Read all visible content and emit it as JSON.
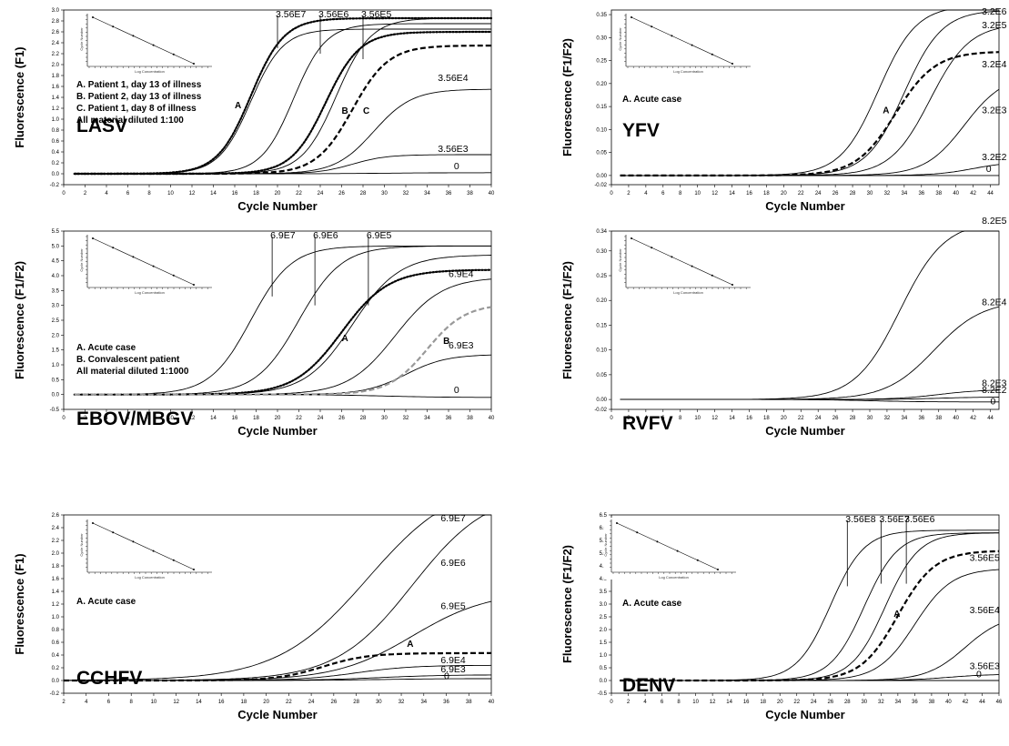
{
  "chart_data": [
    {
      "type": "line",
      "panel": "LASV",
      "virus_label": "LASV",
      "xlabel": "Cycle Number",
      "ylabel": "Fluorescence (F1)",
      "xlim": [
        0,
        40
      ],
      "ylim": [
        -0.2,
        3.0
      ],
      "x_ticks": [
        0,
        2,
        4,
        6,
        8,
        10,
        12,
        14,
        16,
        18,
        20,
        22,
        24,
        26,
        28,
        30,
        32,
        34,
        36,
        38,
        40
      ],
      "y_ticks": [
        "-0.2",
        "0.0",
        "0.2",
        "0.4",
        "0.6",
        "0.8",
        "1.0",
        "1.2",
        "1.4",
        "1.6",
        "1.8",
        "2.0",
        "2.2",
        "2.4",
        "2.6",
        "2.8",
        "3.0"
      ],
      "notes": [
        "A. Patient 1, day 13 of illness",
        "B. Patient 2, day 13 of illness",
        "C. Patient 1, day 8 of illness",
        "All material diluted 1:100"
      ],
      "inset": {
        "xlabel": "Log Concentration",
        "ylabel": "Cycle Number"
      },
      "callouts": [
        {
          "label": "3.56E7",
          "x": 20,
          "y": 2.3
        },
        {
          "label": "3.56E6",
          "x": 24,
          "y": 2.2
        },
        {
          "label": "3.56E5",
          "x": 28,
          "y": 2.1
        }
      ],
      "series": [
        {
          "name": "3.56E7",
          "style": "solid",
          "start": 0,
          "plateau": 2.65,
          "mid": 17.5,
          "scale": 1.5,
          "label": "",
          "label_at": [
            0,
            0
          ]
        },
        {
          "name": "3.56E6",
          "style": "solid",
          "start": 0,
          "plateau": 2.75,
          "mid": 21.5,
          "scale": 1.5,
          "label": "",
          "label_at": [
            0,
            0
          ]
        },
        {
          "name": "3.56E5",
          "style": "solid",
          "start": 0,
          "plateau": 2.85,
          "mid": 25.5,
          "scale": 1.6,
          "label": "",
          "label_at": [
            0,
            0
          ]
        },
        {
          "name": "3.56E4",
          "style": "solid",
          "start": 0,
          "plateau": 1.55,
          "mid": 29,
          "scale": 1.8,
          "label": "3.56E4",
          "label_at": [
            35,
            1.7
          ]
        },
        {
          "name": "3.56E3",
          "style": "solid",
          "start": 0,
          "plateau": 0.35,
          "mid": 27,
          "scale": 1.6,
          "label": "3.56E3",
          "label_at": [
            35,
            0.4
          ]
        },
        {
          "name": "0",
          "style": "solid",
          "start": 0,
          "plateau": 0.02,
          "mid": 30,
          "scale": 3,
          "label": "0",
          "label_at": [
            36.5,
            0.08
          ]
        },
        {
          "name": "A",
          "style": "dotted",
          "start": 0,
          "plateau": 2.85,
          "mid": 17.5,
          "scale": 1.55,
          "label": "A",
          "label_at": [
            16,
            1.2
          ]
        },
        {
          "name": "B",
          "style": "dotted",
          "start": 0,
          "plateau": 2.6,
          "mid": 24.5,
          "scale": 1.6,
          "label": "B",
          "label_at": [
            26,
            1.1
          ]
        },
        {
          "name": "C",
          "style": "dashed",
          "start": 0,
          "plateau": 2.35,
          "mid": 27,
          "scale": 1.7,
          "label": "C",
          "label_at": [
            28,
            1.1
          ]
        }
      ]
    },
    {
      "type": "line",
      "panel": "YFV",
      "virus_label": "YFV",
      "xlabel": "Cycle Number",
      "ylabel": "Fluorescence (F1/F2)",
      "xlim": [
        0,
        45
      ],
      "ylim": [
        -0.02,
        0.36
      ],
      "x_ticks": [
        0,
        2,
        4,
        6,
        8,
        10,
        12,
        14,
        16,
        18,
        20,
        22,
        24,
        26,
        28,
        30,
        32,
        34,
        36,
        38,
        40,
        42,
        44
      ],
      "y_ticks": [
        "-0.02",
        "0.00",
        "0.05",
        "0.10",
        "0.15",
        "0.20",
        "0.25",
        "0.30",
        "0.35"
      ],
      "notes": [
        "A. Acute case"
      ],
      "inset": {
        "xlabel": "Log Concentration",
        "ylabel": "Cycle Number"
      },
      "callouts": [],
      "series": [
        {
          "name": "3.2E6",
          "style": "solid",
          "start": 0,
          "plateau": 0.37,
          "mid": 31,
          "scale": 2.2,
          "label": "3.2E6",
          "label_at": [
            43,
            0.35
          ]
        },
        {
          "name": "3.2E5",
          "style": "solid",
          "start": 0,
          "plateau": 0.36,
          "mid": 34,
          "scale": 2.2,
          "label": "3.2E5",
          "label_at": [
            43,
            0.32
          ]
        },
        {
          "name": "3.2E4",
          "style": "solid",
          "start": 0,
          "plateau": 0.33,
          "mid": 37,
          "scale": 2.3,
          "label": "3.2E4",
          "label_at": [
            43,
            0.235
          ]
        },
        {
          "name": "3.2E3",
          "style": "solid",
          "start": 0,
          "plateau": 0.22,
          "mid": 41,
          "scale": 2.3,
          "label": "3.2E3",
          "label_at": [
            43,
            0.135
          ]
        },
        {
          "name": "3.2E2",
          "style": "solid",
          "start": 0,
          "plateau": 0.03,
          "mid": 42,
          "scale": 2.2,
          "label": "3.2E2",
          "label_at": [
            43,
            0.033
          ]
        },
        {
          "name": "0",
          "style": "solid",
          "start": 0,
          "plateau": 0.0,
          "mid": 30,
          "scale": 3,
          "label": "0",
          "label_at": [
            43.5,
            0.008
          ]
        },
        {
          "name": "A",
          "style": "dashed",
          "start": 0,
          "plateau": 0.27,
          "mid": 33,
          "scale": 2.3,
          "label": "A",
          "label_at": [
            31.5,
            0.135
          ]
        }
      ]
    },
    {
      "type": "line",
      "panel": "EBOV/MBGV",
      "virus_label": "EBOV/MBGV",
      "xlabel": "Cycle Number",
      "ylabel": "Fluorescence (F1/F2)",
      "xlim": [
        0,
        40
      ],
      "ylim": [
        -0.5,
        5.5
      ],
      "x_ticks": [
        0,
        2,
        4,
        6,
        8,
        10,
        12,
        14,
        16,
        18,
        20,
        22,
        24,
        26,
        28,
        30,
        32,
        34,
        36,
        38,
        40
      ],
      "y_ticks": [
        "-0.5",
        "0.0",
        "0.5",
        "1.0",
        "1.5",
        "2.0",
        "2.5",
        "3.0",
        "3.5",
        "4.0",
        "4.5",
        "5.0",
        "5.5"
      ],
      "notes": [
        "A. Acute case",
        "B. Convalescent patient",
        "All material diluted 1:1000"
      ],
      "inset": {
        "xlabel": "Log Concentration",
        "ylabel": "Cycle Number"
      },
      "callouts": [
        {
          "label": "6.9E7",
          "x": 19.5,
          "y": 3.3
        },
        {
          "label": "6.9E6",
          "x": 23.5,
          "y": 3.0
        },
        {
          "label": "6.9E5",
          "x": 28.5,
          "y": 3.0
        }
      ],
      "series": [
        {
          "name": "6.9E7",
          "style": "solid",
          "start": 0,
          "plateau": 5.0,
          "mid": 17.5,
          "scale": 1.9,
          "label": "",
          "label_at": [
            0,
            0
          ]
        },
        {
          "name": "6.9E6",
          "style": "solid",
          "start": 0,
          "plateau": 5.0,
          "mid": 22,
          "scale": 2.0,
          "label": "",
          "label_at": [
            0,
            0
          ]
        },
        {
          "name": "6.9E5",
          "style": "solid",
          "start": 0,
          "plateau": 4.7,
          "mid": 27,
          "scale": 2.2,
          "label": "",
          "label_at": [
            0,
            0
          ]
        },
        {
          "name": "6.9E4",
          "style": "solid",
          "start": 0,
          "plateau": 3.95,
          "mid": 31,
          "scale": 2.2,
          "label": "6.9E4",
          "label_at": [
            36,
            3.95
          ]
        },
        {
          "name": "6.9E3",
          "style": "solid",
          "start": 0,
          "plateau": 1.35,
          "mid": 32,
          "scale": 1.9,
          "label": "6.9E3",
          "label_at": [
            36,
            1.55
          ]
        },
        {
          "name": "0",
          "style": "solid",
          "start": 0,
          "plateau": -0.1,
          "mid": 30,
          "scale": 3,
          "label": "0",
          "label_at": [
            36.5,
            0.05
          ]
        },
        {
          "name": "A",
          "style": "dotted",
          "start": 0,
          "plateau": 4.2,
          "mid": 26,
          "scale": 2.2,
          "label": "A",
          "label_at": [
            26,
            1.8
          ]
        },
        {
          "name": "B",
          "style": "dashed-gray",
          "start": 0,
          "plateau": 3.05,
          "mid": 34,
          "scale": 1.8,
          "label": "B",
          "label_at": [
            35.5,
            1.7
          ]
        }
      ]
    },
    {
      "type": "line",
      "panel": "RVFV",
      "virus_label": "RVFV",
      "xlabel": "Cycle Number",
      "ylabel": "Fluorescence (F1/F2)",
      "xlim": [
        0,
        45
      ],
      "ylim": [
        -0.02,
        0.34
      ],
      "x_ticks": [
        0,
        2,
        4,
        6,
        8,
        10,
        12,
        14,
        16,
        18,
        20,
        22,
        24,
        26,
        28,
        30,
        32,
        34,
        36,
        38,
        40,
        42,
        44
      ],
      "y_ticks": [
        "-0.02",
        "0.00",
        "0.05",
        "0.10",
        "0.15",
        "0.20",
        "0.25",
        "0.30",
        "0.34"
      ],
      "notes": [],
      "inset": {
        "xlabel": "Log Concentration",
        "ylabel": "Cycle Number"
      },
      "callouts": [],
      "series": [
        {
          "name": "8.2E5",
          "style": "solid",
          "start": 0,
          "plateau": 0.36,
          "mid": 33.5,
          "scale": 2.6,
          "label": "8.2E5",
          "label_at": [
            43,
            0.355
          ]
        },
        {
          "name": "8.2E4",
          "style": "solid",
          "start": 0,
          "plateau": 0.2,
          "mid": 37.5,
          "scale": 2.8,
          "label": "8.2E4",
          "label_at": [
            43,
            0.19
          ]
        },
        {
          "name": "8.2E3",
          "style": "solid",
          "start": 0,
          "plateau": 0.02,
          "mid": 38,
          "scale": 2.5,
          "label": "8.2E3",
          "label_at": [
            43,
            0.027
          ]
        },
        {
          "name": "8.2E2",
          "style": "solid",
          "start": 0,
          "plateau": 0.005,
          "mid": 38,
          "scale": 2.5,
          "label": "8.2E2",
          "label_at": [
            43,
            0.013
          ]
        },
        {
          "name": "0",
          "style": "solid",
          "start": 0,
          "plateau": -0.005,
          "mid": 30,
          "scale": 3,
          "label": "0",
          "label_at": [
            44,
            -0.01
          ]
        }
      ]
    },
    {
      "type": "line",
      "panel": "CCHFV",
      "virus_label": "CCHFV",
      "xlabel": "Cycle Number",
      "ylabel": "Fluorescence (F1)",
      "xlim": [
        2,
        40
      ],
      "ylim": [
        -0.2,
        2.6
      ],
      "x_ticks": [
        2,
        4,
        6,
        8,
        10,
        12,
        14,
        16,
        18,
        20,
        22,
        24,
        26,
        28,
        30,
        32,
        34,
        36,
        38,
        40
      ],
      "y_ticks": [
        "-0.2",
        "0.0",
        "0.2",
        "0.4",
        "0.6",
        "0.8",
        "1.0",
        "1.2",
        "1.4",
        "1.6",
        "1.8",
        "2.0",
        "2.2",
        "2.4",
        "2.6"
      ],
      "notes": [
        "A. Acute case"
      ],
      "inset": {
        "xlabel": "Log Concentration",
        "ylabel": "Cycle Number"
      },
      "callouts": [],
      "series": [
        {
          "name": "6.9E7",
          "style": "solid",
          "start": 0,
          "plateau": 3.2,
          "mid": 29,
          "scale": 4.0,
          "label": "6.9E7",
          "label_at": [
            35.5,
            2.5
          ]
        },
        {
          "name": "6.9E6",
          "style": "solid",
          "start": 0,
          "plateau": 3.0,
          "mid": 33,
          "scale": 3.4,
          "label": "6.9E6",
          "label_at": [
            35.5,
            1.8
          ]
        },
        {
          "name": "6.9E5",
          "style": "solid",
          "start": 0,
          "plateau": 1.4,
          "mid": 33,
          "scale": 3.4,
          "label": "6.9E5",
          "label_at": [
            35.5,
            1.12
          ]
        },
        {
          "name": "6.9E4",
          "style": "solid",
          "start": 0,
          "plateau": 0.24,
          "mid": 28,
          "scale": 2.5,
          "label": "6.9E4",
          "label_at": [
            35.5,
            0.27
          ]
        },
        {
          "name": "6.9E3",
          "style": "solid",
          "start": 0,
          "plateau": 0.09,
          "mid": 30,
          "scale": 3.0,
          "label": "6.9E3",
          "label_at": [
            35.5,
            0.13
          ]
        },
        {
          "name": "0",
          "style": "solid",
          "start": 0,
          "plateau": 0.03,
          "mid": 30,
          "scale": 3,
          "label": "0",
          "label_at": [
            35.8,
            0.02
          ]
        },
        {
          "name": "A",
          "style": "dashed",
          "start": 0,
          "plateau": 0.43,
          "mid": 25,
          "scale": 2.0,
          "label": "A",
          "label_at": [
            32.5,
            0.53
          ]
        }
      ]
    },
    {
      "type": "line",
      "panel": "DENV",
      "virus_label": "DENV",
      "xlabel": "Cycle Number",
      "ylabel": "Fluorescence (F1/F2)",
      "xlim": [
        0,
        46
      ],
      "ylim": [
        -0.5,
        6.5
      ],
      "x_ticks": [
        0,
        2,
        4,
        6,
        8,
        10,
        12,
        14,
        16,
        18,
        20,
        22,
        24,
        26,
        28,
        30,
        32,
        34,
        36,
        38,
        40,
        42,
        44,
        46
      ],
      "y_ticks": [
        "-0.5",
        "0.0",
        "0.5",
        "1.0",
        "1.5",
        "2.0",
        "2.5",
        "3.0",
        "3.5",
        "4.0",
        "4.5",
        "5.0",
        "5.5",
        "6.0",
        "6.5"
      ],
      "notes": [
        "A. Acute case"
      ],
      "inset": {
        "xlabel": "Log Concentration",
        "ylabel": "Cycle Number"
      },
      "callouts": [
        {
          "label": "3.56E8",
          "x": 28,
          "y": 3.7
        },
        {
          "label": "3.56E7",
          "x": 32,
          "y": 3.8
        },
        {
          "label": "3.56E6",
          "x": 35,
          "y": 3.8
        }
      ],
      "series": [
        {
          "name": "3.56E8",
          "style": "solid",
          "start": 0,
          "plateau": 5.9,
          "mid": 26,
          "scale": 2.0,
          "label": "",
          "label_at": [
            0,
            0
          ]
        },
        {
          "name": "3.56E7",
          "style": "solid",
          "start": 0,
          "plateau": 5.8,
          "mid": 30,
          "scale": 2.0,
          "label": "",
          "label_at": [
            0,
            0
          ]
        },
        {
          "name": "3.56E6",
          "style": "solid",
          "start": 0,
          "plateau": 5.8,
          "mid": 32.5,
          "scale": 2.0,
          "label": "",
          "label_at": [
            0,
            0
          ]
        },
        {
          "name": "3.56E5",
          "style": "solid",
          "start": 0,
          "plateau": 4.4,
          "mid": 36,
          "scale": 2.2,
          "label": "3.56E5",
          "label_at": [
            42.5,
            4.7
          ]
        },
        {
          "name": "3.56E4",
          "style": "solid",
          "start": 0,
          "plateau": 2.6,
          "mid": 42,
          "scale": 2.3,
          "label": "3.56E4",
          "label_at": [
            42.5,
            2.65
          ]
        },
        {
          "name": "3.56E3",
          "style": "solid",
          "start": 0,
          "plateau": 0.25,
          "mid": 40,
          "scale": 2.5,
          "label": "3.56E3",
          "label_at": [
            42.5,
            0.45
          ]
        },
        {
          "name": "0",
          "style": "solid",
          "start": 0,
          "plateau": 0.0,
          "mid": 30,
          "scale": 3,
          "label": "0",
          "label_at": [
            43.3,
            0.12
          ]
        },
        {
          "name": "A",
          "style": "dashed",
          "start": 0,
          "plateau": 5.1,
          "mid": 34,
          "scale": 2.2,
          "label": "A",
          "label_at": [
            33.5,
            2.5
          ]
        }
      ]
    }
  ]
}
